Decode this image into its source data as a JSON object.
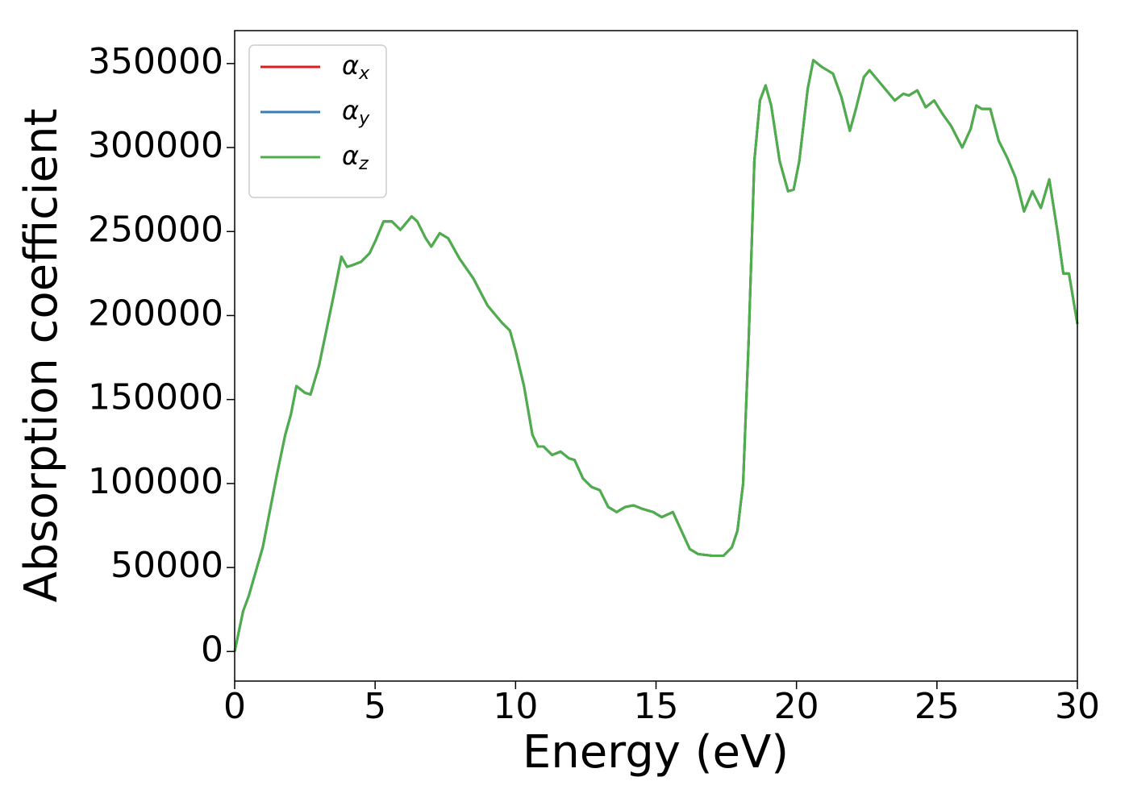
{
  "chart_data": {
    "type": "line",
    "xlabel": "Energy (eV)",
    "ylabel": "Absorption coefficient",
    "x": [
      0,
      0.3,
      0.5,
      1.0,
      1.5,
      1.8,
      2.0,
      2.2,
      2.5,
      2.7,
      3.0,
      3.5,
      3.8,
      4.0,
      4.2,
      4.5,
      4.8,
      5.0,
      5.3,
      5.6,
      5.9,
      6.3,
      6.5,
      6.8,
      7.0,
      7.3,
      7.6,
      8.0,
      8.5,
      9.0,
      9.5,
      9.8,
      10.0,
      10.3,
      10.6,
      10.8,
      11.0,
      11.3,
      11.6,
      11.9,
      12.1,
      12.4,
      12.7,
      13.0,
      13.3,
      13.6,
      13.9,
      14.2,
      14.5,
      14.9,
      15.2,
      15.6,
      15.9,
      16.2,
      16.5,
      17.0,
      17.4,
      17.7,
      17.9,
      18.1,
      18.3,
      18.5,
      18.7,
      18.9,
      19.1,
      19.4,
      19.7,
      19.9,
      20.1,
      20.4,
      20.6,
      20.9,
      21.3,
      21.6,
      21.9,
      22.1,
      22.4,
      22.6,
      22.9,
      23.2,
      23.5,
      23.8,
      24.0,
      24.3,
      24.6,
      24.9,
      25.2,
      25.5,
      25.9,
      26.2,
      26.4,
      26.6,
      26.9,
      27.2,
      27.5,
      27.8,
      28.1,
      28.4,
      28.7,
      29.0,
      29.3,
      29.5,
      29.7,
      30.0
    ],
    "series": [
      {
        "name": "αx",
        "color": "#e41a1c",
        "values": [
          0,
          24000,
          33000,
          62000,
          105000,
          129000,
          141000,
          158000,
          154000,
          153000,
          170000,
          210000,
          235000,
          229000,
          230000,
          232000,
          237000,
          244000,
          256000,
          256000,
          251000,
          259000,
          256000,
          246000,
          241000,
          249000,
          246000,
          234000,
          222000,
          206000,
          196000,
          191000,
          179000,
          158000,
          129000,
          122000,
          122000,
          117000,
          119000,
          115000,
          114000,
          103000,
          98000,
          96000,
          86000,
          83000,
          86000,
          87000,
          85000,
          83000,
          80000,
          83000,
          72000,
          61000,
          58000,
          57000,
          57000,
          62000,
          72000,
          100000,
          186000,
          292000,
          328000,
          337000,
          325000,
          292000,
          274000,
          275000,
          292000,
          335000,
          352000,
          348000,
          344000,
          330000,
          310000,
          322000,
          342000,
          346000,
          340000,
          334000,
          328000,
          332000,
          331000,
          334000,
          324000,
          328000,
          320000,
          313000,
          300000,
          311000,
          325000,
          323000,
          323000,
          304000,
          294000,
          282000,
          262000,
          274000,
          264000,
          281000,
          249000,
          225000,
          225000,
          195000
        ]
      },
      {
        "name": "αy",
        "color": "#377eb8",
        "values": [
          0,
          24000,
          33000,
          62000,
          105000,
          129000,
          141000,
          158000,
          154000,
          153000,
          170000,
          210000,
          235000,
          229000,
          230000,
          232000,
          237000,
          244000,
          256000,
          256000,
          251000,
          259000,
          256000,
          246000,
          241000,
          249000,
          246000,
          234000,
          222000,
          206000,
          196000,
          191000,
          179000,
          158000,
          129000,
          122000,
          122000,
          117000,
          119000,
          115000,
          114000,
          103000,
          98000,
          96000,
          86000,
          83000,
          86000,
          87000,
          85000,
          83000,
          80000,
          83000,
          72000,
          61000,
          58000,
          57000,
          57000,
          62000,
          72000,
          100000,
          186000,
          292000,
          328000,
          337000,
          325000,
          292000,
          274000,
          275000,
          292000,
          335000,
          352000,
          348000,
          344000,
          330000,
          310000,
          322000,
          342000,
          346000,
          340000,
          334000,
          328000,
          332000,
          331000,
          334000,
          324000,
          328000,
          320000,
          313000,
          300000,
          311000,
          325000,
          323000,
          323000,
          304000,
          294000,
          282000,
          262000,
          274000,
          264000,
          281000,
          249000,
          225000,
          225000,
          195000
        ]
      },
      {
        "name": "αz",
        "color": "#4daf4a",
        "values": [
          0,
          24000,
          33000,
          62000,
          105000,
          129000,
          141000,
          158000,
          154000,
          153000,
          170000,
          210000,
          235000,
          229000,
          230000,
          232000,
          237000,
          244000,
          256000,
          256000,
          251000,
          259000,
          256000,
          246000,
          241000,
          249000,
          246000,
          234000,
          222000,
          206000,
          196000,
          191000,
          179000,
          158000,
          129000,
          122000,
          122000,
          117000,
          119000,
          115000,
          114000,
          103000,
          98000,
          96000,
          86000,
          83000,
          86000,
          87000,
          85000,
          83000,
          80000,
          83000,
          72000,
          61000,
          58000,
          57000,
          57000,
          62000,
          72000,
          100000,
          186000,
          292000,
          328000,
          337000,
          325000,
          292000,
          274000,
          275000,
          292000,
          335000,
          352000,
          348000,
          344000,
          330000,
          310000,
          322000,
          342000,
          346000,
          340000,
          334000,
          328000,
          332000,
          331000,
          334000,
          324000,
          328000,
          320000,
          313000,
          300000,
          311000,
          325000,
          323000,
          323000,
          304000,
          294000,
          282000,
          262000,
          274000,
          264000,
          281000,
          249000,
          225000,
          225000,
          195000
        ]
      }
    ],
    "xlim": [
      0,
      30
    ],
    "xticks": [
      0,
      5,
      10,
      15,
      20,
      25,
      30
    ],
    "ylim": [
      -17600,
      369600
    ],
    "yticks": [
      0,
      50000,
      100000,
      150000,
      200000,
      250000,
      300000,
      350000
    ],
    "grid": false,
    "legend": "upper left"
  }
}
